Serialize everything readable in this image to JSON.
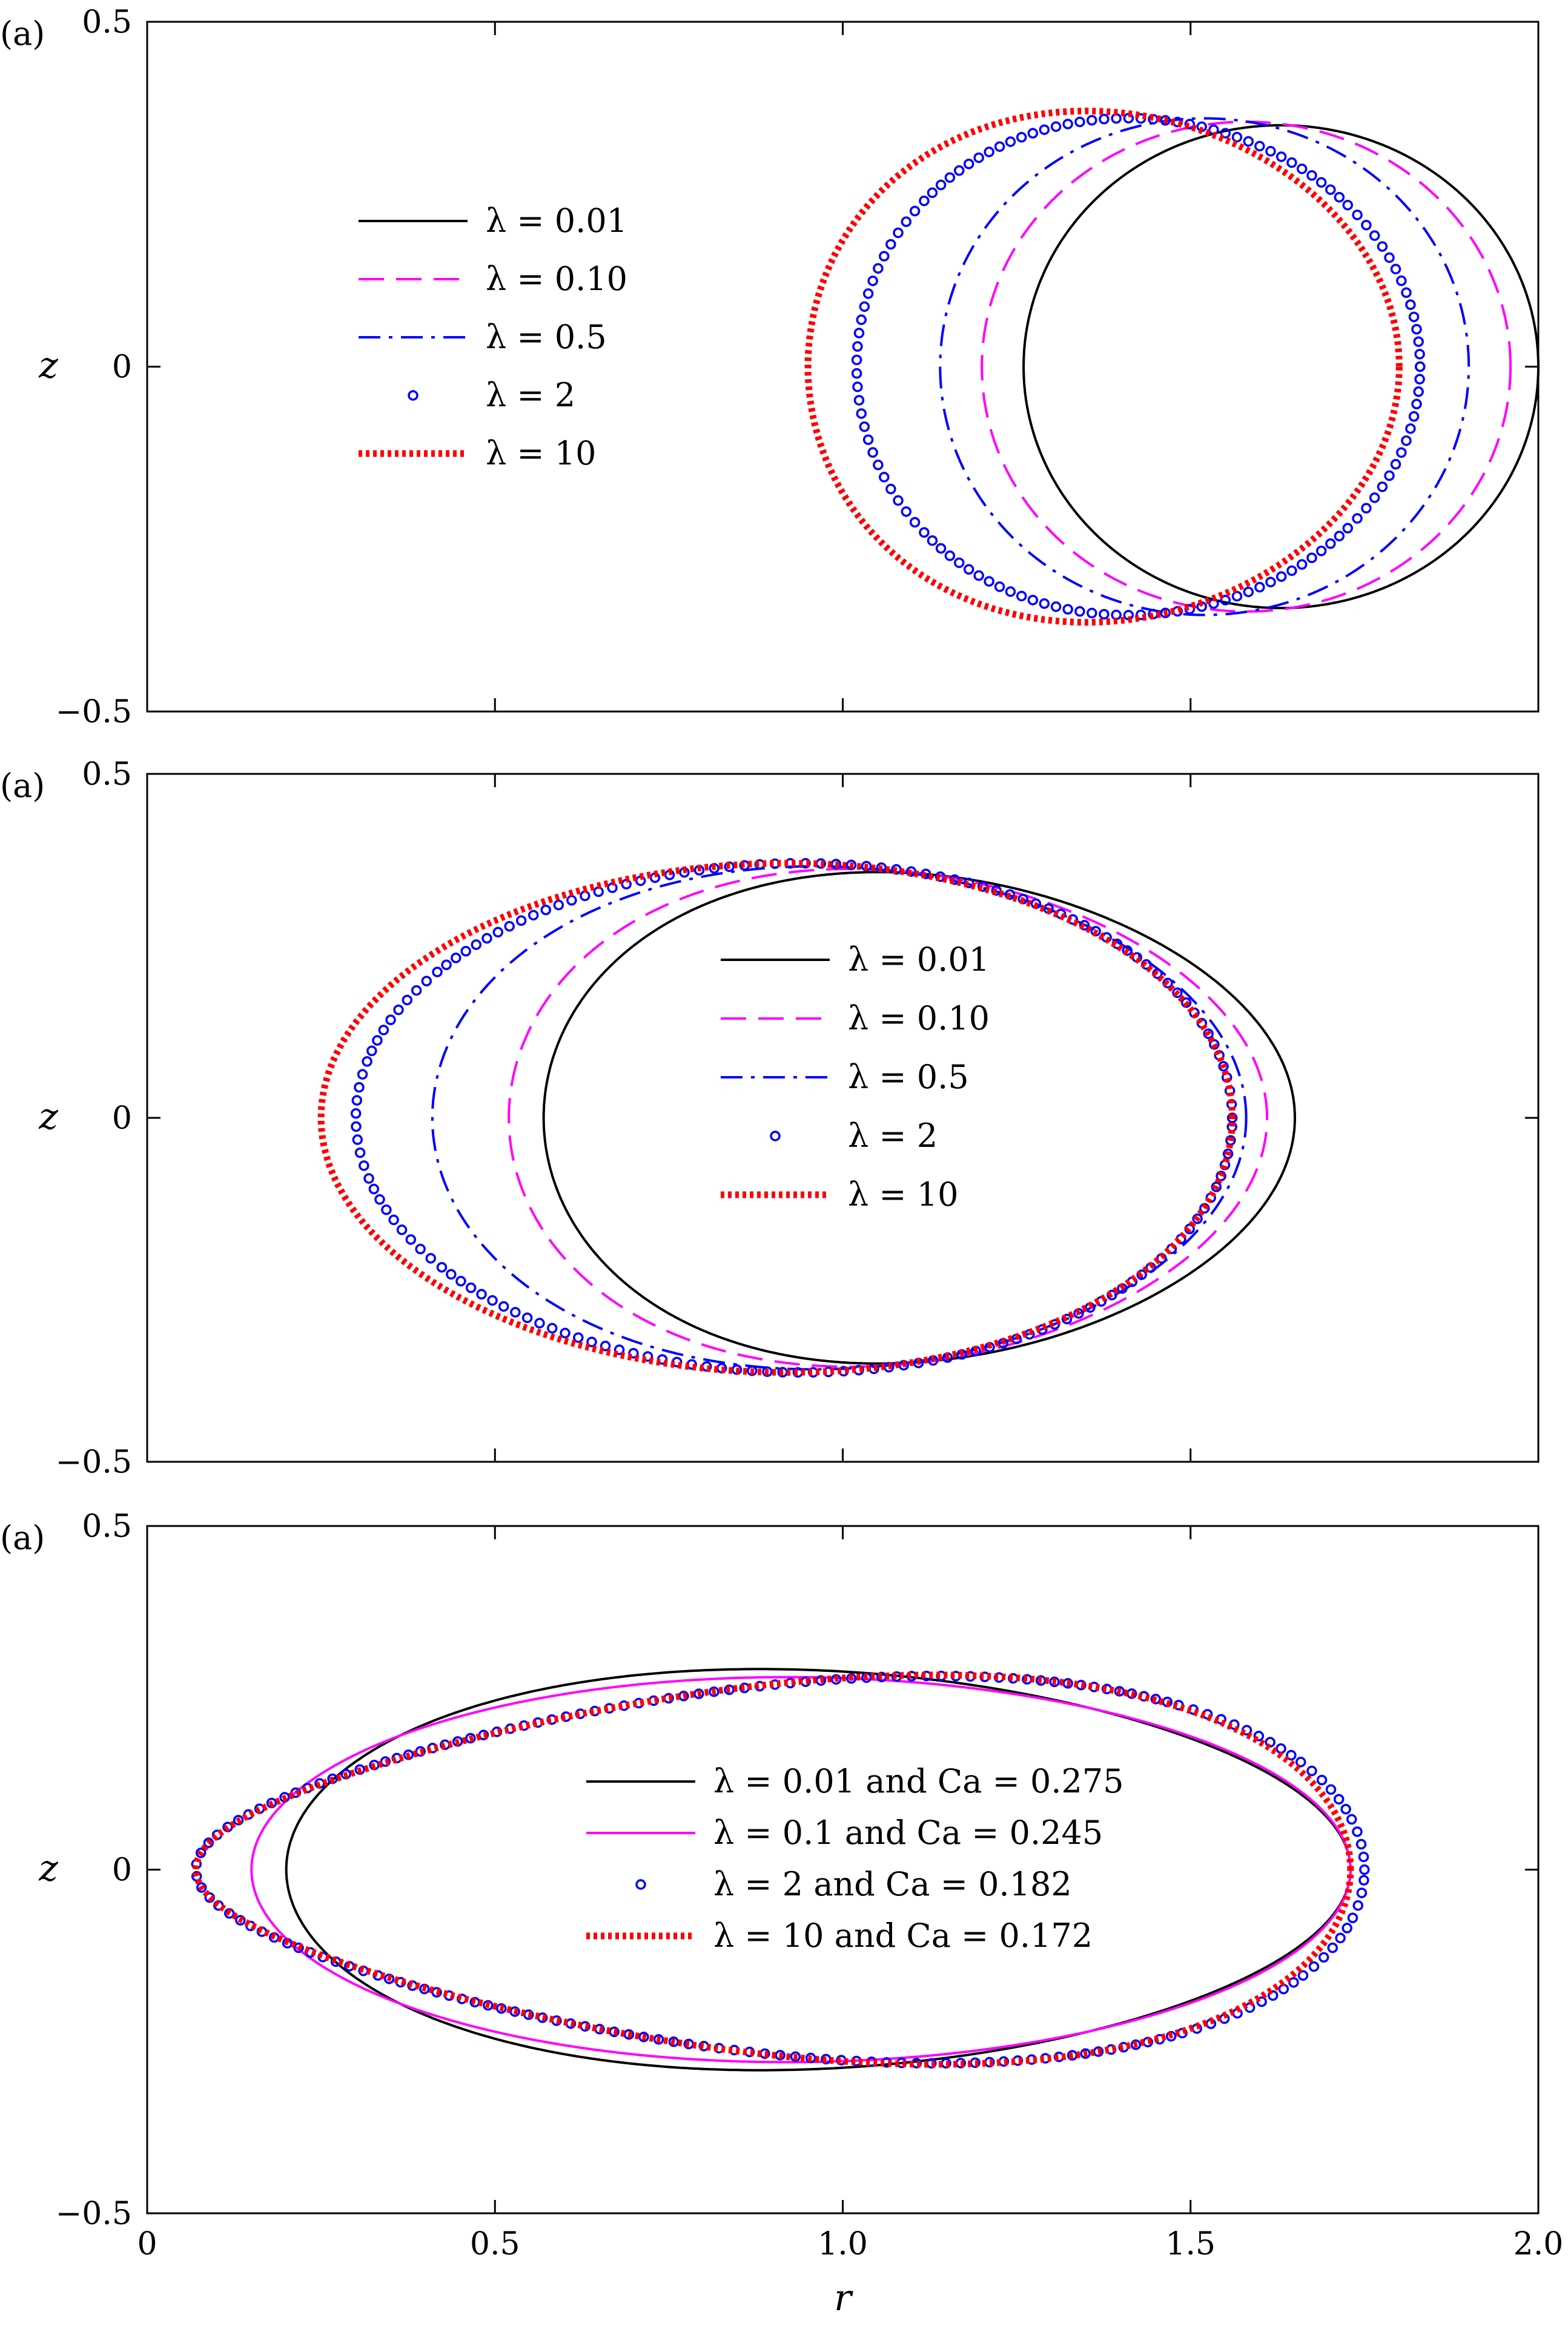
{
  "figure": {
    "xlabel": "r",
    "x_ticks": [
      "0",
      "0.5",
      "1.0",
      "1.5",
      "2.0"
    ]
  },
  "chart_data": [
    {
      "type": "line",
      "panel_label": "(a)",
      "ylabel": "z",
      "xlim": [
        0,
        2
      ],
      "ylim": [
        -0.5,
        0.5
      ],
      "y_ticks": [
        "0.5",
        "0",
        "−0.5"
      ],
      "legend_position": "upper-left",
      "series": [
        {
          "name": "λ = 0.01",
          "color": "#000000",
          "style": "solid",
          "shape": {
            "rmin": 1.26,
            "rmax": 2.0,
            "zmax": 0.35,
            "rpeak": 1.63
          }
        },
        {
          "name": "λ = 0.10",
          "color": "#ff00ff",
          "style": "dashed",
          "shape": {
            "rmin": 1.2,
            "rmax": 1.96,
            "zmax": 0.355,
            "rpeak": 1.58
          }
        },
        {
          "name": "λ = 0.5",
          "color": "#0000ff",
          "style": "dashdot",
          "shape": {
            "rmin": 1.14,
            "rmax": 1.9,
            "zmax": 0.36,
            "rpeak": 1.52
          }
        },
        {
          "name": "λ = 2",
          "color": "#0000ff",
          "style": "circles",
          "shape": {
            "rmin": 1.02,
            "rmax": 1.83,
            "zmax": 0.36,
            "rpeak": 1.41
          }
        },
        {
          "name": "λ = 10",
          "color": "#ff0000",
          "style": "dotted",
          "shape": {
            "rmin": 0.95,
            "rmax": 1.8,
            "zmax": 0.37,
            "rpeak": 1.35
          }
        }
      ]
    },
    {
      "type": "line",
      "panel_label": "(a)",
      "ylabel": "z",
      "xlim": [
        0,
        2
      ],
      "ylim": [
        -0.5,
        0.5
      ],
      "y_ticks": [
        "0.5",
        "0",
        "−0.5"
      ],
      "legend_position": "center",
      "series": [
        {
          "name": "λ = 0.01",
          "color": "#000000",
          "style": "solid",
          "shape": {
            "rmin": 0.57,
            "rmax": 1.65,
            "zmax": 0.355,
            "rpeak": 1.05
          }
        },
        {
          "name": "λ = 0.10",
          "color": "#ff00ff",
          "style": "dashed",
          "shape": {
            "rmin": 0.52,
            "rmax": 1.61,
            "zmax": 0.36,
            "rpeak": 1.01
          }
        },
        {
          "name": "λ = 0.5",
          "color": "#0000ff",
          "style": "dashdot",
          "shape": {
            "rmin": 0.41,
            "rmax": 1.58,
            "zmax": 0.365,
            "rpeak": 0.96
          }
        },
        {
          "name": "λ = 2",
          "color": "#0000ff",
          "style": "circles",
          "shape": {
            "rmin": 0.3,
            "rmax": 1.56,
            "zmax": 0.37,
            "rpeak": 0.94
          }
        },
        {
          "name": "λ = 10",
          "color": "#ff0000",
          "style": "dotted",
          "shape": {
            "rmin": 0.25,
            "rmax": 1.56,
            "zmax": 0.37,
            "rpeak": 0.92
          }
        }
      ]
    },
    {
      "type": "line",
      "panel_label": "(a)",
      "ylabel": "z",
      "xlim": [
        0,
        2
      ],
      "ylim": [
        -0.5,
        0.5
      ],
      "y_ticks": [
        "0.5",
        "0",
        "−0.5"
      ],
      "legend_position": "center",
      "series": [
        {
          "name": "λ = 0.01 and Ca = 0.275",
          "color": "#000000",
          "style": "solid",
          "shape": {
            "rmin": 0.2,
            "rmax": 1.73,
            "zmax": 0.29,
            "rpeak": 0.88
          }
        },
        {
          "name": "λ = 0.1 and Ca = 0.245",
          "color": "#ff00ff",
          "style": "solid",
          "shape": {
            "rmin": 0.15,
            "rmax": 1.73,
            "zmax": 0.28,
            "rpeak": 0.92
          }
        },
        {
          "name": "λ = 2 and Ca = 0.182",
          "color": "#0000ff",
          "style": "circles",
          "shape": {
            "rmin": 0.07,
            "rmax": 1.75,
            "zmax": 0.27,
            "rpeak": 1.15
          }
        },
        {
          "name": "λ = 10 and Ca = 0.172",
          "color": "#ff0000",
          "style": "dotted",
          "shape": {
            "rmin": 0.07,
            "rmax": 1.73,
            "zmax": 0.27,
            "rpeak": 1.15
          }
        }
      ]
    }
  ]
}
